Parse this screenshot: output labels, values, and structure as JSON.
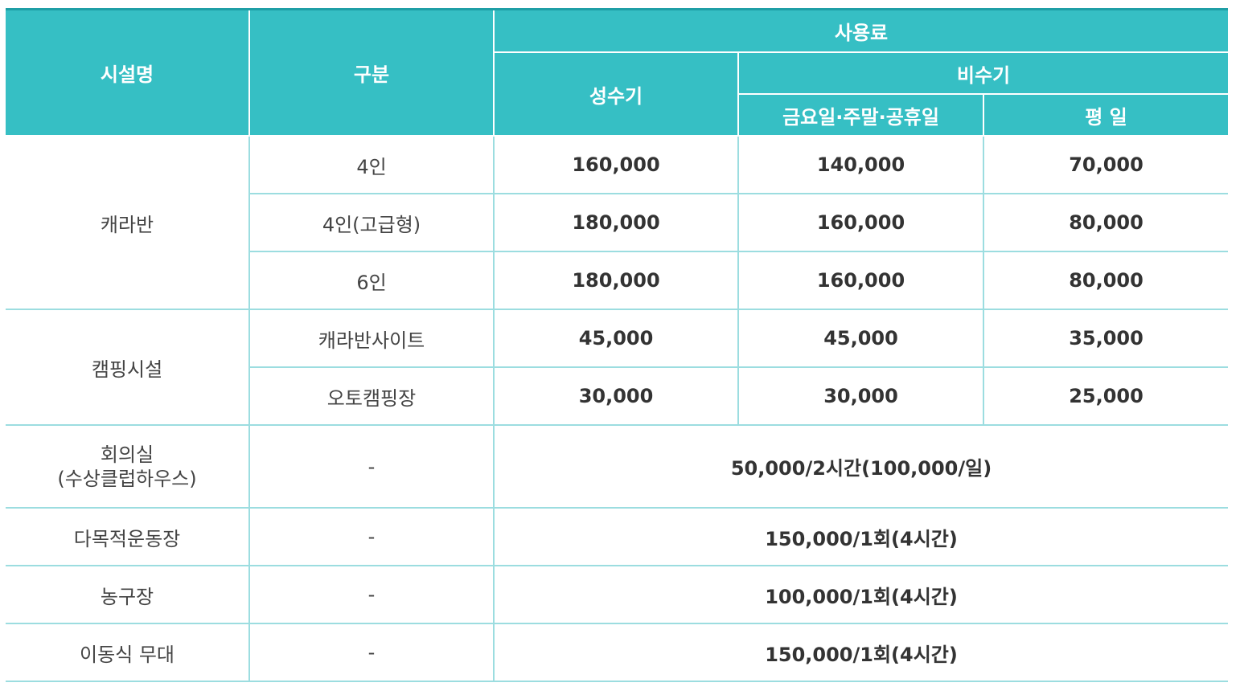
{
  "header": {
    "facility": "시설명",
    "category": "구분",
    "fee": "사용료",
    "peak": "성수기",
    "offpeak": "비수기",
    "weekend": "금요일·주말·공휴일",
    "weekday": "평 일"
  },
  "rows": {
    "caravan": {
      "name": "캐라반",
      "r4": {
        "cat": "4인",
        "peak": "160,000",
        "weekend": "140,000",
        "weekday": "70,000"
      },
      "r4p": {
        "cat": "4인(고급형)",
        "peak": "180,000",
        "weekend": "160,000",
        "weekday": "80,000"
      },
      "r6": {
        "cat": "6인",
        "peak": "180,000",
        "weekend": "160,000",
        "weekday": "80,000"
      }
    },
    "camping": {
      "name": "캠핑시설",
      "site": {
        "cat": "캐라반사이트",
        "peak": "45,000",
        "weekend": "45,000",
        "weekday": "35,000"
      },
      "auto": {
        "cat": "오토캠핑장",
        "peak": "30,000",
        "weekend": "30,000",
        "weekday": "25,000"
      }
    },
    "meeting": {
      "name_line1": "회의실",
      "name_line2": "(수상클럽하우스)",
      "cat": "-",
      "fee": "50,000/2시간(100,000/일)"
    },
    "sports": {
      "name": "다목적운동장",
      "cat": "-",
      "fee": "150,000/1회(4시간)"
    },
    "basketball": {
      "name": "농구장",
      "cat": "-",
      "fee": "100,000/1회(4시간)"
    },
    "stage": {
      "name": "이동식 무대",
      "cat": "-",
      "fee": "150,000/1회(4시간)"
    }
  }
}
